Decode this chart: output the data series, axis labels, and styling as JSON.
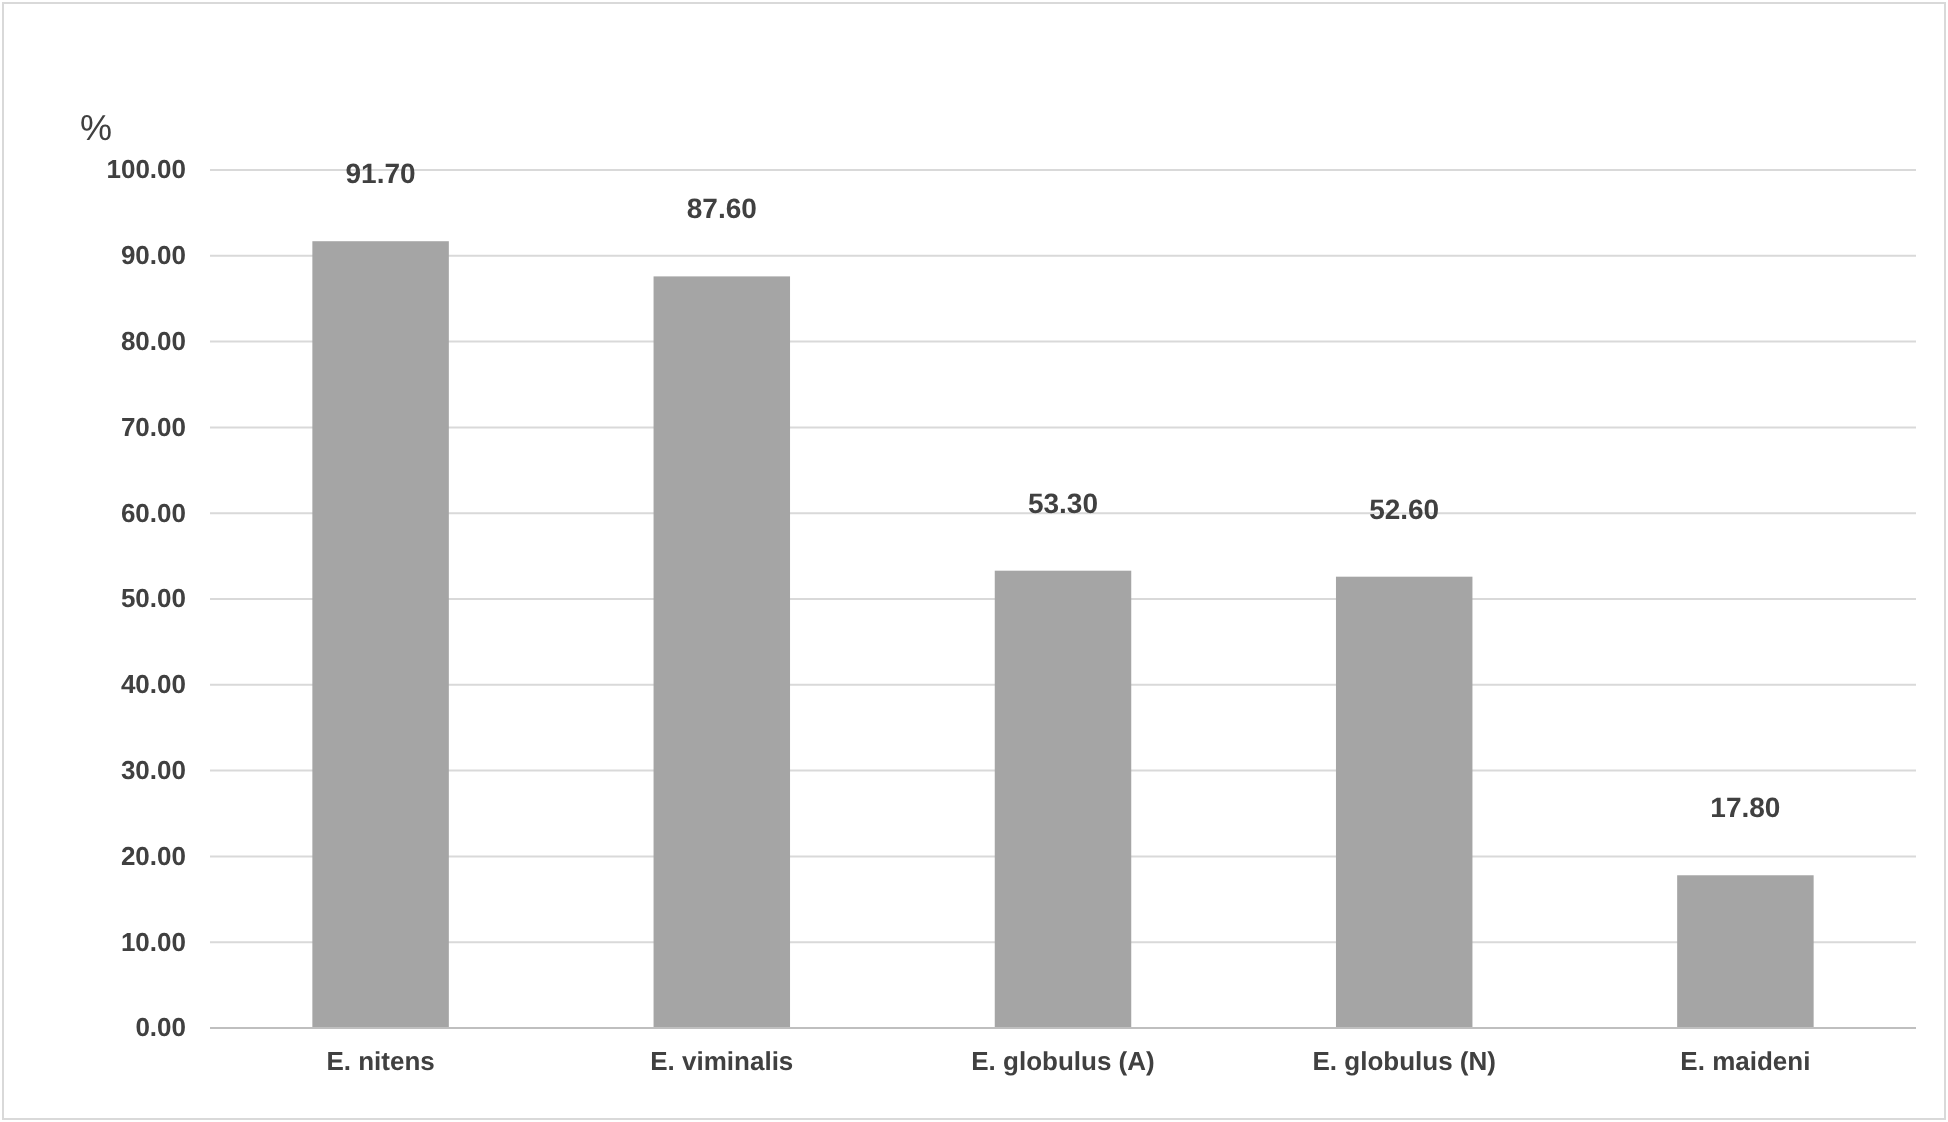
{
  "chart_data": {
    "type": "bar",
    "ylabel": "%",
    "categories": [
      "E. nitens",
      "E. viminalis",
      "E. globulus (A)",
      "E. globulus (N)",
      "E. maideni"
    ],
    "values": [
      91.7,
      87.6,
      53.3,
      52.6,
      17.8
    ],
    "value_labels": [
      "91.70",
      "87.60",
      "53.30",
      "52.60",
      "17.80"
    ],
    "color": "#a5a5a5",
    "ylim": [
      0,
      100
    ],
    "yticks": [
      {
        "value": 0,
        "label": "0.00"
      },
      {
        "value": 10,
        "label": "10.00"
      },
      {
        "value": 20,
        "label": "20.00"
      },
      {
        "value": 30,
        "label": "30.00"
      },
      {
        "value": 40,
        "label": "40.00"
      },
      {
        "value": 50,
        "label": "50.00"
      },
      {
        "value": 60,
        "label": "60.00"
      },
      {
        "value": 70,
        "label": "70.00"
      },
      {
        "value": 80,
        "label": "80.00"
      },
      {
        "value": 90,
        "label": "90.00"
      },
      {
        "value": 100,
        "label": "100.00"
      }
    ],
    "grid": "y"
  }
}
